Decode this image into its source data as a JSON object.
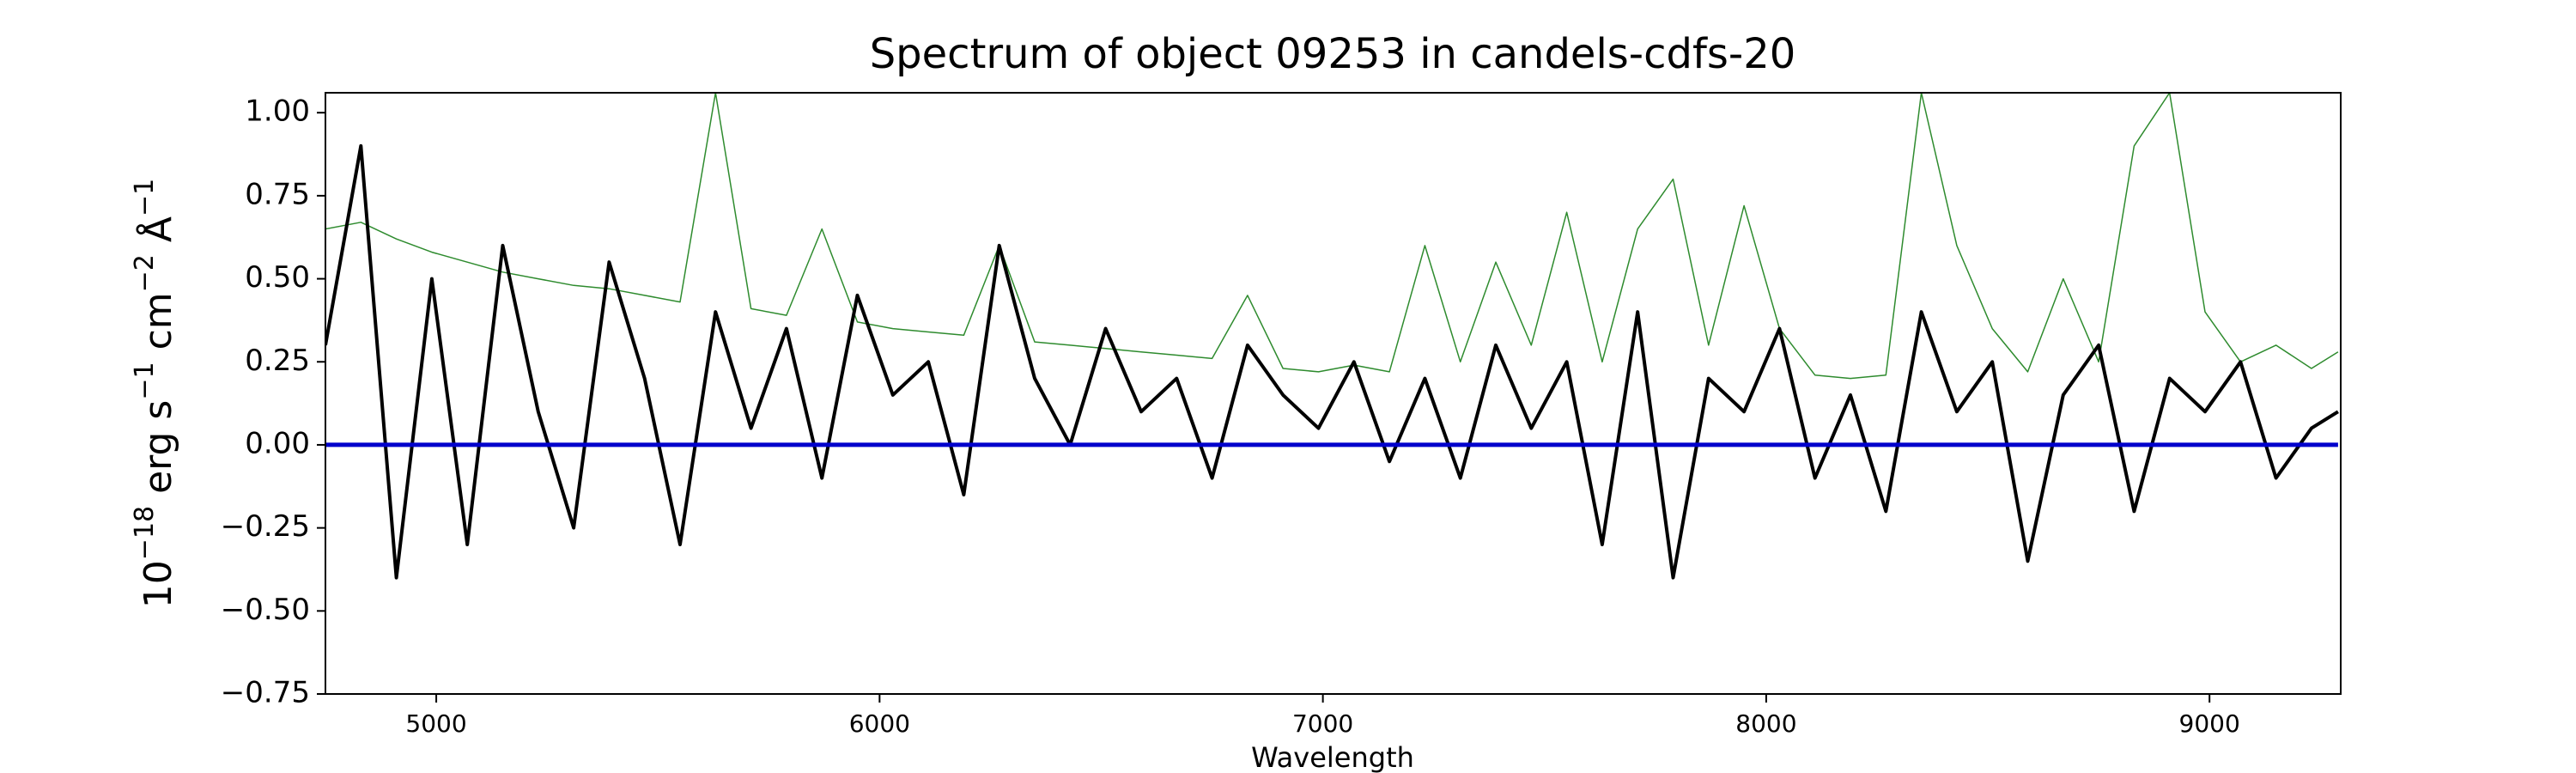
{
  "chart_data": {
    "type": "line",
    "title": "Spectrum of object 09253 in candels-cdfs-20",
    "xlabel": "Wavelength",
    "ylabel": [
      "10",
      "−18",
      " erg s",
      "−1",
      " cm",
      "−2",
      " Å",
      "−1"
    ],
    "x": [
      4750,
      4830,
      4910,
      4990,
      5070,
      5150,
      5230,
      5310,
      5390,
      5470,
      5550,
      5630,
      5710,
      5790,
      5870,
      5950,
      6030,
      6110,
      6190,
      6270,
      6350,
      6430,
      6510,
      6590,
      6670,
      6750,
      6830,
      6910,
      6990,
      7070,
      7150,
      7230,
      7310,
      7390,
      7470,
      7550,
      7630,
      7710,
      7790,
      7870,
      7950,
      8030,
      8110,
      8190,
      8270,
      8350,
      8430,
      8510,
      8590,
      8670,
      8750,
      8830,
      8910,
      8990,
      9070,
      9150,
      9230,
      9290
    ],
    "series": [
      {
        "color": "#2e8b2e",
        "width": 1.5,
        "values": [
          0.65,
          0.67,
          0.62,
          0.58,
          0.55,
          0.52,
          0.5,
          0.48,
          0.47,
          0.45,
          0.43,
          1.06,
          0.41,
          0.39,
          0.65,
          0.37,
          0.35,
          0.34,
          0.33,
          0.6,
          0.31,
          0.3,
          0.29,
          0.28,
          0.27,
          0.26,
          0.45,
          0.23,
          0.22,
          0.24,
          0.22,
          0.6,
          0.25,
          0.55,
          0.3,
          0.7,
          0.25,
          0.65,
          0.8,
          0.3,
          0.72,
          0.35,
          0.21,
          0.2,
          0.21,
          1.06,
          0.6,
          0.35,
          0.22,
          0.5,
          0.25,
          0.9,
          1.06,
          0.4,
          0.25,
          0.3,
          0.23,
          0.28
        ]
      },
      {
        "color": "#000000",
        "width": 4,
        "values": [
          0.3,
          0.9,
          -0.4,
          0.5,
          -0.3,
          0.6,
          0.1,
          -0.25,
          0.55,
          0.2,
          -0.3,
          0.4,
          0.05,
          0.35,
          -0.1,
          0.45,
          0.15,
          0.25,
          -0.15,
          0.6,
          0.2,
          0.0,
          0.35,
          0.1,
          0.2,
          -0.1,
          0.3,
          0.15,
          0.05,
          0.25,
          -0.05,
          0.2,
          -0.1,
          0.3,
          0.05,
          0.25,
          -0.3,
          0.4,
          -0.4,
          0.2,
          0.1,
          0.35,
          -0.1,
          0.15,
          -0.2,
          0.4,
          0.1,
          0.25,
          -0.35,
          0.15,
          0.3,
          -0.2,
          0.2,
          0.1,
          0.25,
          -0.1,
          0.05,
          0.1
        ]
      },
      {
        "color": "#0000cc",
        "width": 5,
        "x": [
          4750,
          9290
        ],
        "values": [
          0,
          0
        ]
      }
    ],
    "xlim": [
      4750,
      9296
    ],
    "ylim": [
      -0.75,
      1.06
    ],
    "xticks": [
      5000,
      6000,
      7000,
      8000,
      9000
    ],
    "yticks": [
      {
        "value": -0.75,
        "label": "−0.75"
      },
      {
        "value": -0.5,
        "label": "−0.50"
      },
      {
        "value": -0.25,
        "label": "−0.25"
      },
      {
        "value": 0,
        "label": "0.00"
      },
      {
        "value": 0.25,
        "label": "0.25"
      },
      {
        "value": 0.5,
        "label": "0.50"
      },
      {
        "value": 0.75,
        "label": "0.75"
      },
      {
        "value": 1,
        "label": "1.00"
      }
    ]
  }
}
